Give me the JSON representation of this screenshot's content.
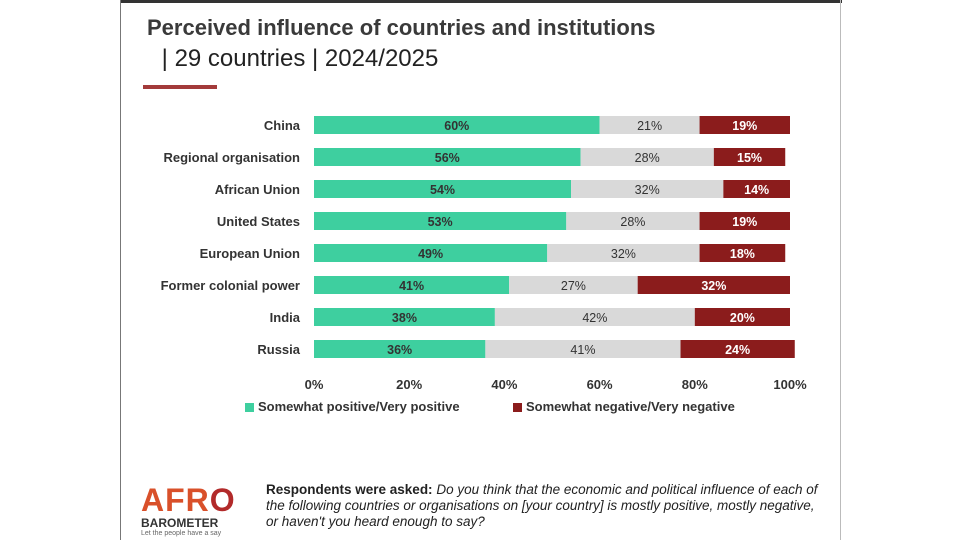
{
  "header": {
    "title": "Perceived influence of countries and institutions",
    "subtitle": " | 29 countries | 2024/2025"
  },
  "chart_data": {
    "type": "bar",
    "orientation": "horizontal",
    "stacked": true,
    "categories": [
      "China",
      "Regional organisation",
      "African Union",
      "United States",
      "European Union",
      "Former colonial power",
      "India",
      "Russia"
    ],
    "series": [
      {
        "name": "Somewhat positive/Very positive",
        "color": "#3ecf9f",
        "values": [
          60,
          56,
          54,
          53,
          49,
          41,
          38,
          36
        ]
      },
      {
        "name": "",
        "color": "#d9d9d9",
        "values": [
          21,
          28,
          32,
          28,
          32,
          27,
          42,
          41
        ]
      },
      {
        "name": "Somewhat negative/Very negative",
        "color": "#8b1c1c",
        "values": [
          19,
          15,
          14,
          19,
          18,
          32,
          20,
          24
        ]
      }
    ],
    "xlim": [
      0,
      100
    ],
    "xticks": [
      "0%",
      "20%",
      "40%",
      "60%",
      "80%",
      "100%"
    ],
    "legend_placement": "bottom",
    "grid": false
  },
  "legend": {
    "positive": "Somewhat positive/Very positive",
    "negative": "Somewhat negative/Very negative"
  },
  "footer": {
    "logo": "AFRO BAROMETER Let the people have a say",
    "question_label": "Respondents were asked:",
    "question_text": " Do you think that the economic and political influence of each of the following countries or organisations on [your country] is mostly positive, mostly negative, or haven't you heard enough to say?"
  }
}
